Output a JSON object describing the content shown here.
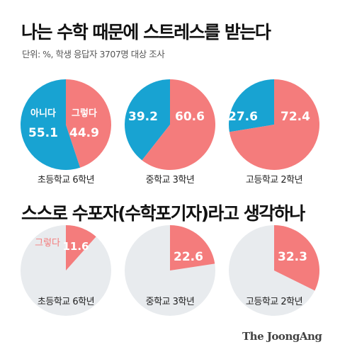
{
  "header": {
    "title": "나는 수학 때문에 스트레스를 받는다",
    "subtitle": "단위: %, 학생 응답자 3707명 대상 조사"
  },
  "section2": {
    "title": "스스로 수포자(수학포기자)라고 생각하나"
  },
  "colors": {
    "yes": "#f47c7c",
    "no": "#18a3d2",
    "rest": "#e8ebee"
  },
  "chart_data": [
    {
      "type": "pie",
      "title": "나는 수학 때문에 스트레스를 받는다",
      "charts": [
        {
          "caption": "초등학교 6학년",
          "slices": [
            {
              "label": "그렇다",
              "value": 44.9,
              "color": "#f47c7c"
            },
            {
              "label": "아니다",
              "value": 55.1,
              "color": "#18a3d2"
            }
          ]
        },
        {
          "caption": "중학교 3학년",
          "slices": [
            {
              "label": "",
              "value": 60.6,
              "color": "#f47c7c"
            },
            {
              "label": "",
              "value": 39.2,
              "color": "#18a3d2"
            }
          ]
        },
        {
          "caption": "고등학교 2학년",
          "slices": [
            {
              "label": "",
              "value": 72.4,
              "color": "#f47c7c"
            },
            {
              "label": "",
              "value": 27.6,
              "color": "#18a3d2"
            }
          ]
        }
      ]
    },
    {
      "type": "pie",
      "title": "스스로 수포자(수학포기자)라고 생각하나",
      "charts": [
        {
          "caption": "초등학교 6학년",
          "slices": [
            {
              "label": "그렇다",
              "value": 11.6,
              "color": "#f47c7c"
            }
          ]
        },
        {
          "caption": "중학교 3학년",
          "slices": [
            {
              "label": "",
              "value": 22.6,
              "color": "#f47c7c"
            }
          ]
        },
        {
          "caption": "고등학교 2학년",
          "slices": [
            {
              "label": "",
              "value": 32.3,
              "color": "#f47c7c"
            }
          ]
        }
      ]
    }
  ],
  "footer": {
    "logo": "The JoongAng"
  }
}
